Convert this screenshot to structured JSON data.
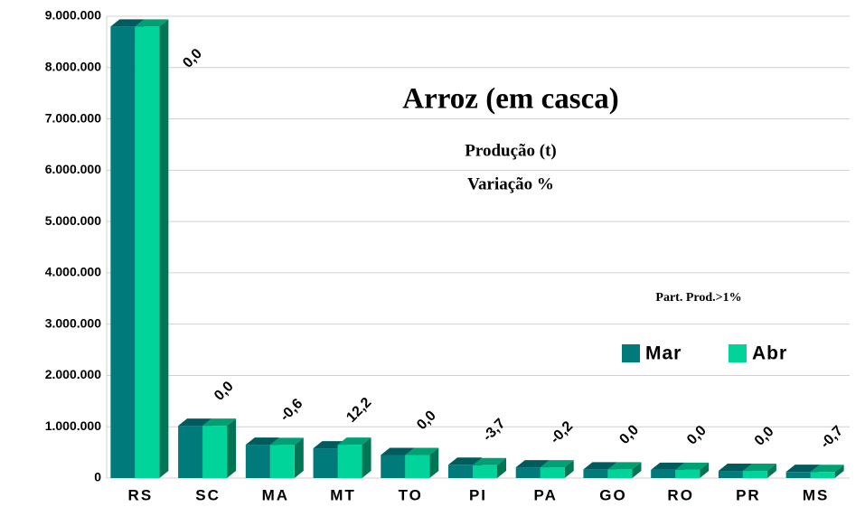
{
  "chart_data": {
    "type": "bar3d",
    "title": "Arroz (em casca)",
    "subtitle": [
      "Produção (t)",
      "Variação %"
    ],
    "annotation": "Part. Prod.>1%",
    "categories": [
      "RS",
      "SC",
      "MA",
      "MT",
      "TO",
      "PI",
      "PA",
      "GO",
      "RO",
      "PR",
      "MS"
    ],
    "series": [
      {
        "name": "Mar",
        "color": "#007a7a",
        "values": [
          8800000,
          1020000,
          650000,
          580000,
          450000,
          260000,
          210000,
          170000,
          160000,
          140000,
          120000
        ]
      },
      {
        "name": "Abr",
        "color": "#00d49a",
        "values": [
          8800000,
          1020000,
          646000,
          650000,
          450000,
          250000,
          210000,
          170000,
          160000,
          140000,
          119000
        ]
      }
    ],
    "variation": {
      "values": [
        0,
        0,
        -0.6,
        12.2,
        0,
        -3.7,
        -0.2,
        0,
        0,
        0,
        -0.7
      ],
      "value_labels": [
        "0,0",
        "0,0",
        "-0,6",
        "12,2",
        "0,0",
        "-3,7",
        "-0,2",
        "0,0",
        "0,0",
        "0,0",
        "-0,7"
      ]
    },
    "ylim": [
      0,
      9000000
    ],
    "yticks": [
      0,
      {
        "value": 1000000,
        "label": "1.000.000"
      },
      {
        "value": 2000000,
        "label": "2.000.000"
      },
      {
        "value": 3000000,
        "label": "3.000.000"
      },
      {
        "value": 4000000,
        "label": "4.000.000"
      },
      {
        "value": 5000000,
        "label": "5.000.000"
      },
      {
        "value": 6000000,
        "label": "6.000.000"
      },
      {
        "value": 7000000,
        "label": "7.000.000"
      },
      {
        "value": 8000000,
        "label": "8.000.000"
      },
      {
        "value": 9000000,
        "label": "9.000.000"
      }
    ],
    "grid": true
  }
}
